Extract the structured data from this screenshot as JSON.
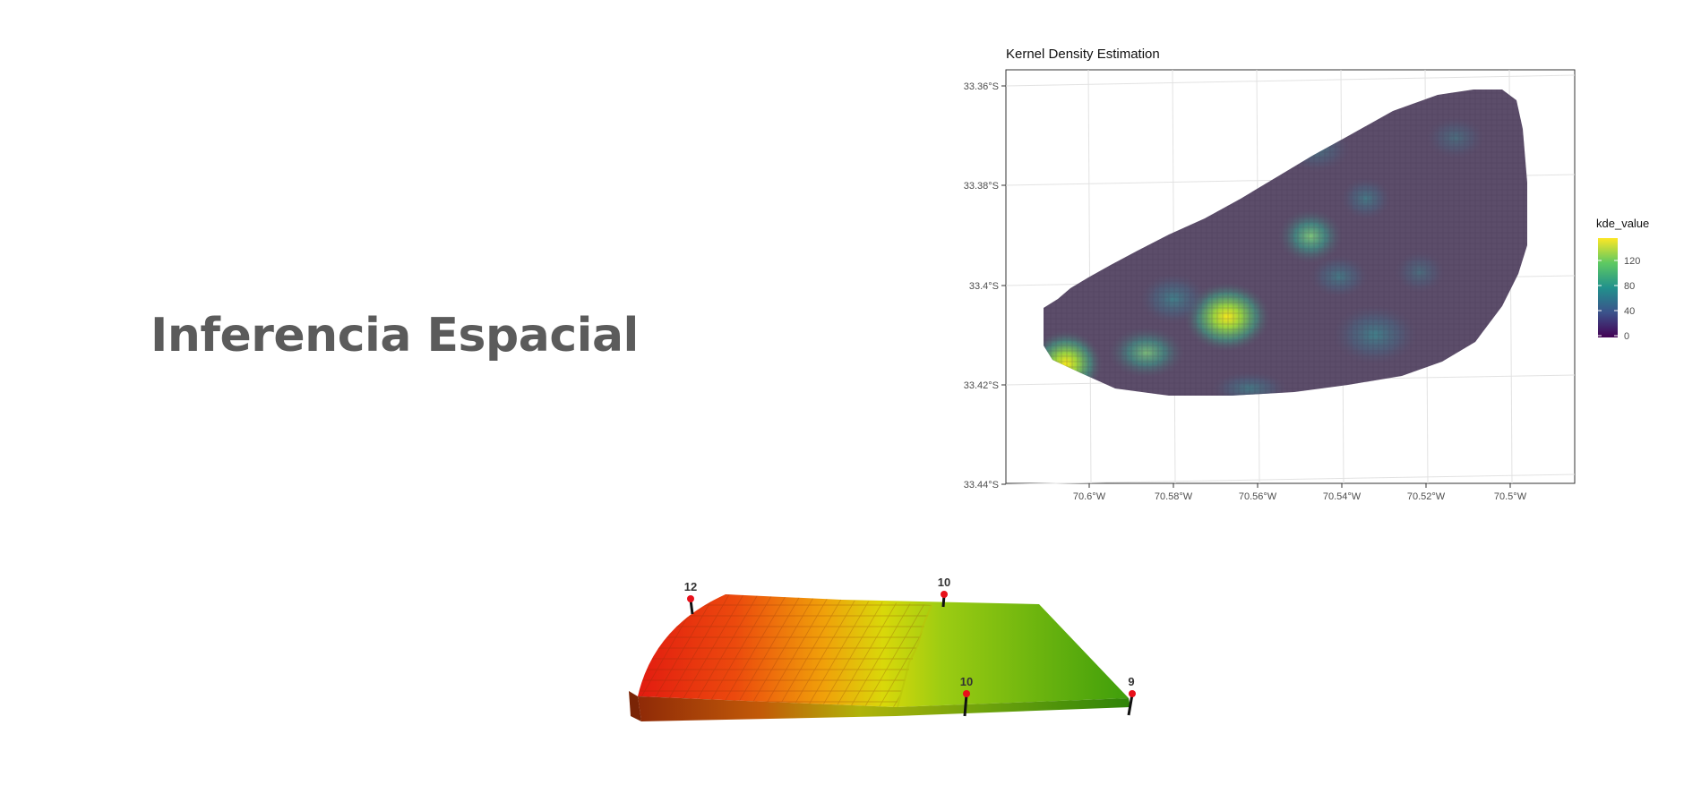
{
  "slide": {
    "title": "Inferencia Espacial"
  },
  "kde_plot": {
    "title": "Kernel Density Estimation",
    "y_ticks": [
      "33.36°S",
      "33.38°S",
      "33.4°S",
      "33.42°S",
      "33.44°S"
    ],
    "x_ticks": [
      "70.6°W",
      "70.58°W",
      "70.56°W",
      "70.54°W",
      "70.52°W",
      "70.5°W"
    ],
    "legend_title": "kde_value",
    "legend_ticks": [
      "120",
      "80",
      "40",
      "0"
    ],
    "colors": {
      "background_density": "#5c4d6a",
      "scale_low": "#440154",
      "scale_high": "#fde725"
    }
  },
  "chart_data": {
    "type": "heatmap",
    "title": "Kernel Density Estimation",
    "xlabel": "",
    "ylabel": "",
    "x": [
      -70.6,
      -70.58,
      -70.56,
      -70.54,
      -70.52,
      -70.5
    ],
    "y": [
      -33.36,
      -33.38,
      -33.4,
      -33.42,
      -33.44
    ],
    "legend": {
      "title": "kde_value",
      "placement": "right",
      "range": [
        0,
        140
      ]
    },
    "grid": true
  },
  "terrain": {
    "pin_labels": [
      "12",
      "10",
      "10",
      "9"
    ],
    "colors": {
      "high": "#e21b10",
      "mid": "#d9d80a",
      "low": "#3f9e0b"
    }
  }
}
